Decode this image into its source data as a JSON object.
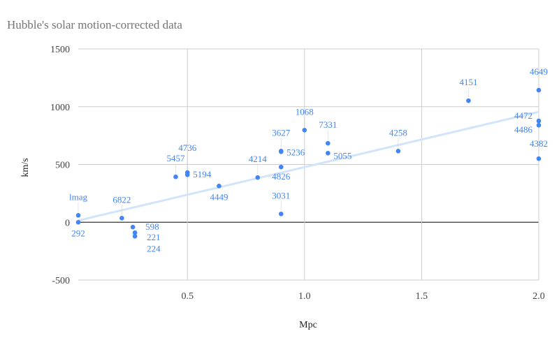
{
  "chart_data": {
    "type": "scatter",
    "title": "Hubble's solar motion-corrected data",
    "xlabel": "Mpc",
    "ylabel": "km/s",
    "xlim": [
      0.034,
      2.0
    ],
    "ylim": [
      -500,
      1500
    ],
    "xticks": [
      0.5,
      1.0,
      1.5,
      2.0
    ],
    "xtick_labels": [
      "0.5",
      "1.0",
      "1.5",
      "2.0"
    ],
    "yticks": [
      -500,
      0,
      500,
      1000,
      1500
    ],
    "ytick_labels": [
      "-500",
      "0",
      "500",
      "1000",
      "1500"
    ],
    "grid": true,
    "colors": {
      "points": "#4285f4",
      "trendline": "#d2e3fc",
      "zero_line": "#333333",
      "grid": "#cccccc"
    },
    "trendline": {
      "type": "linear",
      "x": [
        0.034,
        2.0
      ],
      "y": [
        15,
        955
      ]
    },
    "points": [
      {
        "label": "lmag",
        "x": 0.034,
        "y": 60
      },
      {
        "label": "292",
        "x": 0.034,
        "y": 0
      },
      {
        "label": "6822",
        "x": 0.22,
        "y": 36
      },
      {
        "label": "598",
        "x": 0.267,
        "y": -42
      },
      {
        "label": "221",
        "x": 0.276,
        "y": -90
      },
      {
        "label": "224",
        "x": 0.276,
        "y": -121
      },
      {
        "label": "5457",
        "x": 0.45,
        "y": 393
      },
      {
        "label": "4736",
        "x": 0.5,
        "y": 430
      },
      {
        "label": "5194",
        "x": 0.5,
        "y": 411
      },
      {
        "label": "4449",
        "x": 0.635,
        "y": 314
      },
      {
        "label": "4214",
        "x": 0.8,
        "y": 387
      },
      {
        "label": "3627",
        "x": 0.9,
        "y": 616
      },
      {
        "label": "5236",
        "x": 0.9,
        "y": 610
      },
      {
        "label": "4826",
        "x": 0.9,
        "y": 478
      },
      {
        "label": "3031",
        "x": 0.9,
        "y": 72
      },
      {
        "label": "1068",
        "x": 1.0,
        "y": 797
      },
      {
        "label": "7331",
        "x": 1.1,
        "y": 683
      },
      {
        "label": "5055",
        "x": 1.1,
        "y": 598
      },
      {
        "label": "4258",
        "x": 1.4,
        "y": 616
      },
      {
        "label": "4151",
        "x": 1.7,
        "y": 1052
      },
      {
        "label": "4649",
        "x": 2.0,
        "y": 1143
      },
      {
        "label": "4472",
        "x": 2.0,
        "y": 877
      },
      {
        "label": "4486",
        "x": 2.0,
        "y": 840
      },
      {
        "label": "4382",
        "x": 2.0,
        "y": 550
      }
    ]
  }
}
